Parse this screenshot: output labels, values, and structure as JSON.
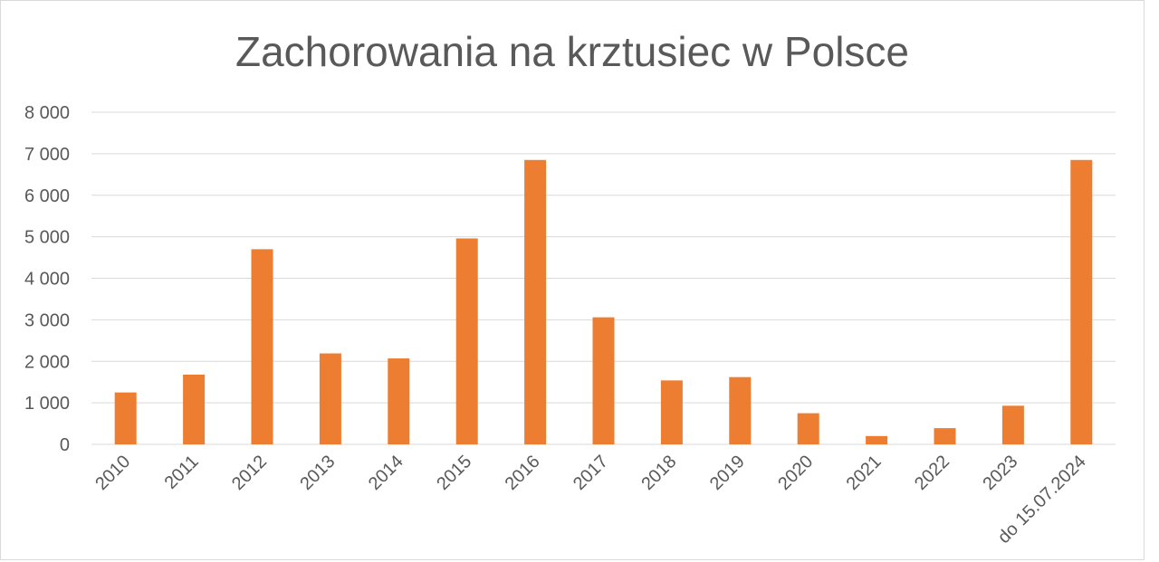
{
  "chart_data": {
    "type": "bar",
    "title": "Zachorowania na krztusiec w Polsce",
    "xlabel": "",
    "ylabel": "",
    "categories": [
      "2010",
      "2011",
      "2012",
      "2013",
      "2014",
      "2015",
      "2016",
      "2017",
      "2018",
      "2019",
      "2020",
      "2021",
      "2022",
      "2023",
      "do 15.07.2024"
    ],
    "values": [
      1250,
      1680,
      4700,
      2190,
      2070,
      4960,
      6850,
      3060,
      1540,
      1620,
      750,
      200,
      390,
      930,
      6850
    ],
    "ylim": [
      0,
      8000
    ],
    "yticks": [
      0,
      1000,
      2000,
      3000,
      4000,
      5000,
      6000,
      7000,
      8000
    ],
    "ytick_labels": [
      "0",
      "1 000",
      "2 000",
      "3 000",
      "4 000",
      "5 000",
      "6 000",
      "7 000",
      "8 000"
    ],
    "grid": true,
    "legend": "none",
    "bar_color": "#ED7D31"
  }
}
